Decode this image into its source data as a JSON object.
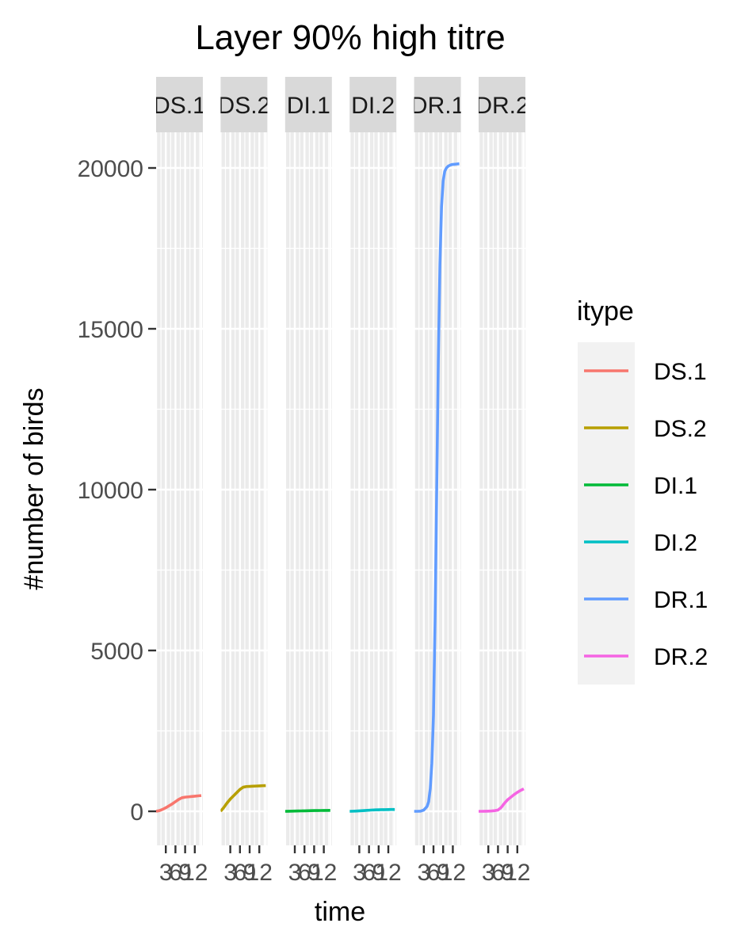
{
  "chart_data": {
    "type": "line",
    "title": "Layer 90% high titre",
    "xlabel": "time",
    "ylabel": "#number of birds",
    "xlim": [
      0,
      14.5
    ],
    "ylim": [
      -1000,
      21000
    ],
    "x_ticks": [
      3,
      6,
      9,
      12
    ],
    "x_tick_labels": [
      "3",
      "6",
      "9",
      "12"
    ],
    "y_ticks": [
      0,
      5000,
      10000,
      15000,
      20000
    ],
    "y_tick_labels": [
      "0",
      "5000",
      "10000",
      "15000",
      "20000"
    ],
    "facets": [
      "DS.1",
      "DS.2",
      "DI.1",
      "DI.2",
      "DR.1",
      "DR.2"
    ],
    "grid": true,
    "legend": {
      "title": "itype",
      "placement": "right",
      "entries": [
        "DS.1",
        "DS.2",
        "DI.1",
        "DI.2",
        "DR.1",
        "DR.2"
      ]
    },
    "series": [
      {
        "name": "DS.1",
        "color": "#F8766D",
        "x": [
          0,
          1,
          2,
          3,
          4,
          5,
          6,
          7,
          8,
          9,
          10,
          11,
          12,
          13,
          14
        ],
        "y": [
          0,
          20,
          60,
          110,
          170,
          230,
          300,
          370,
          420,
          440,
          450,
          460,
          470,
          480,
          490
        ]
      },
      {
        "name": "DS.2",
        "color": "#B79F00",
        "x": [
          0,
          1,
          2,
          3,
          4,
          5,
          6,
          7,
          8,
          9,
          10,
          11,
          12,
          13,
          14
        ],
        "y": [
          0,
          120,
          260,
          380,
          480,
          580,
          680,
          750,
          770,
          775,
          780,
          785,
          790,
          795,
          800
        ]
      },
      {
        "name": "DI.1",
        "color": "#00BA38",
        "x": [
          0,
          1,
          2,
          3,
          4,
          5,
          6,
          7,
          8,
          9,
          10,
          11,
          12,
          13,
          14
        ],
        "y": [
          0,
          2,
          5,
          8,
          10,
          12,
          15,
          18,
          20,
          22,
          24,
          25,
          26,
          27,
          28
        ]
      },
      {
        "name": "DI.2",
        "color": "#00BFC4",
        "x": [
          0,
          1,
          2,
          3,
          4,
          5,
          6,
          7,
          8,
          9,
          10,
          11,
          12,
          13,
          14
        ],
        "y": [
          0,
          3,
          8,
          14,
          20,
          27,
          34,
          40,
          45,
          48,
          50,
          52,
          54,
          56,
          58
        ]
      },
      {
        "name": "DR.1",
        "color": "#619CFF",
        "x": [
          0,
          1,
          2,
          3,
          4,
          4.5,
          5,
          5.5,
          6,
          6.5,
          7,
          7.5,
          8,
          8.5,
          9,
          9.5,
          10,
          10.5,
          11,
          11.5,
          12,
          13,
          14
        ],
        "y": [
          0,
          0,
          5,
          40,
          150,
          300,
          700,
          1500,
          3000,
          6000,
          10000,
          14000,
          17000,
          18800,
          19600,
          19900,
          20000,
          20050,
          20080,
          20100,
          20110,
          20120,
          20130
        ]
      },
      {
        "name": "DR.2",
        "color": "#F564E3",
        "x": [
          0,
          1,
          2,
          3,
          4,
          5,
          6,
          7,
          8,
          9,
          10,
          11,
          12,
          13,
          14
        ],
        "y": [
          0,
          0,
          2,
          5,
          10,
          20,
          40,
          120,
          250,
          360,
          440,
          520,
          590,
          650,
          700
        ]
      }
    ]
  }
}
